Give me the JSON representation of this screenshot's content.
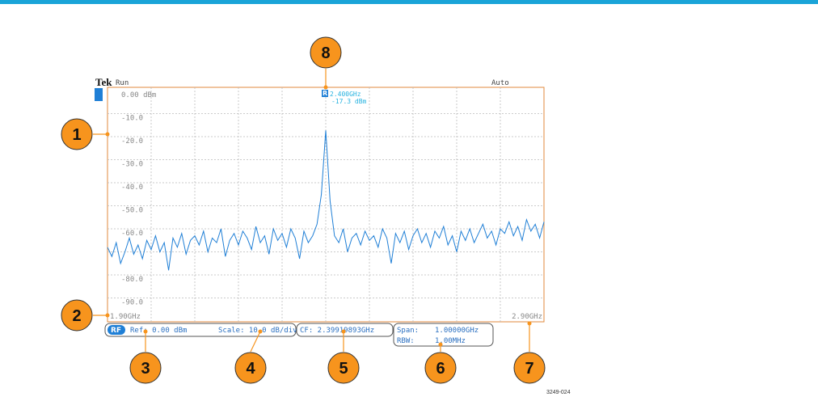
{
  "header": {
    "brand": "Tek",
    "state": "Run",
    "mode": "Auto",
    "ref_badge": "R",
    "figure_id": "3249-024"
  },
  "chart_data": {
    "type": "line",
    "xlim": [
      1.9,
      2.9
    ],
    "ylim": [
      0,
      -100
    ],
    "xticks": [
      {
        "value": 1.9,
        "label": "1.90GHz"
      },
      {
        "value": 2.9,
        "label": "2.90GHz"
      }
    ],
    "yticks": [
      {
        "value": 0,
        "label": "0.00 dBm"
      },
      {
        "value": -10,
        "label": "-10.0"
      },
      {
        "value": -20,
        "label": "-20.0"
      },
      {
        "value": -30,
        "label": "-30.0"
      },
      {
        "value": -40,
        "label": "-40.0"
      },
      {
        "value": -50,
        "label": "-50.0"
      },
      {
        "value": -60,
        "label": "-60.0"
      },
      {
        "value": -80,
        "label": "-80.0"
      },
      {
        "value": -90,
        "label": "-90.0"
      }
    ],
    "grid": true,
    "series": [
      {
        "color": "#1f7fd6",
        "x": [
          1.9,
          1.91,
          1.92,
          1.93,
          1.94,
          1.95,
          1.96,
          1.97,
          1.98,
          1.99,
          2.0,
          2.01,
          2.02,
          2.03,
          2.04,
          2.05,
          2.06,
          2.07,
          2.08,
          2.09,
          2.1,
          2.11,
          2.12,
          2.13,
          2.14,
          2.15,
          2.16,
          2.17,
          2.18,
          2.19,
          2.2,
          2.21,
          2.22,
          2.23,
          2.24,
          2.25,
          2.26,
          2.27,
          2.28,
          2.29,
          2.3,
          2.31,
          2.32,
          2.33,
          2.34,
          2.35,
          2.36,
          2.37,
          2.38,
          2.39,
          2.4,
          2.41,
          2.42,
          2.43,
          2.44,
          2.45,
          2.46,
          2.47,
          2.48,
          2.49,
          2.5,
          2.51,
          2.52,
          2.53,
          2.54,
          2.55,
          2.56,
          2.57,
          2.58,
          2.59,
          2.6,
          2.61,
          2.62,
          2.63,
          2.64,
          2.65,
          2.66,
          2.67,
          2.68,
          2.69,
          2.7,
          2.71,
          2.72,
          2.73,
          2.74,
          2.75,
          2.76,
          2.77,
          2.78,
          2.79,
          2.8,
          2.81,
          2.82,
          2.83,
          2.84,
          2.85,
          2.86,
          2.87,
          2.88,
          2.89,
          2.9
        ],
        "values": [
          -68,
          -72,
          -66,
          -75,
          -70,
          -64,
          -71,
          -67,
          -73,
          -65,
          -69,
          -63,
          -70,
          -66,
          -78,
          -64,
          -68,
          -62,
          -71,
          -65,
          -63,
          -67,
          -61,
          -70,
          -64,
          -66,
          -60,
          -72,
          -65,
          -62,
          -67,
          -61,
          -64,
          -69,
          -59,
          -66,
          -63,
          -71,
          -60,
          -65,
          -62,
          -68,
          -60,
          -64,
          -73,
          -61,
          -66,
          -63,
          -58,
          -45,
          -17.3,
          -48,
          -63,
          -66,
          -60,
          -70,
          -64,
          -62,
          -67,
          -61,
          -65,
          -63,
          -68,
          -60,
          -64,
          -75,
          -62,
          -66,
          -61,
          -69,
          -63,
          -60,
          -66,
          -62,
          -68,
          -61,
          -64,
          -59,
          -67,
          -63,
          -70,
          -61,
          -65,
          -60,
          -66,
          -62,
          -58,
          -64,
          -61,
          -67,
          -60,
          -62,
          -57,
          -63,
          -59,
          -65,
          -56,
          -61,
          -58,
          -64,
          -57
        ]
      }
    ],
    "annotations": [
      "2.400GHz",
      "-17.3 dBm"
    ]
  },
  "readouts": {
    "rf": "RF",
    "ref": "Ref: 0.00 dBm",
    "scale": "Scale: 10.0 dB/div",
    "cf": "CF:  2.39919893GHz",
    "span_label": "Span:",
    "span": "1.00000GHz",
    "rbw_label": "RBW:",
    "rbw": "1.00MHz"
  },
  "callouts": [
    "1",
    "2",
    "3",
    "4",
    "5",
    "6",
    "7",
    "8"
  ]
}
